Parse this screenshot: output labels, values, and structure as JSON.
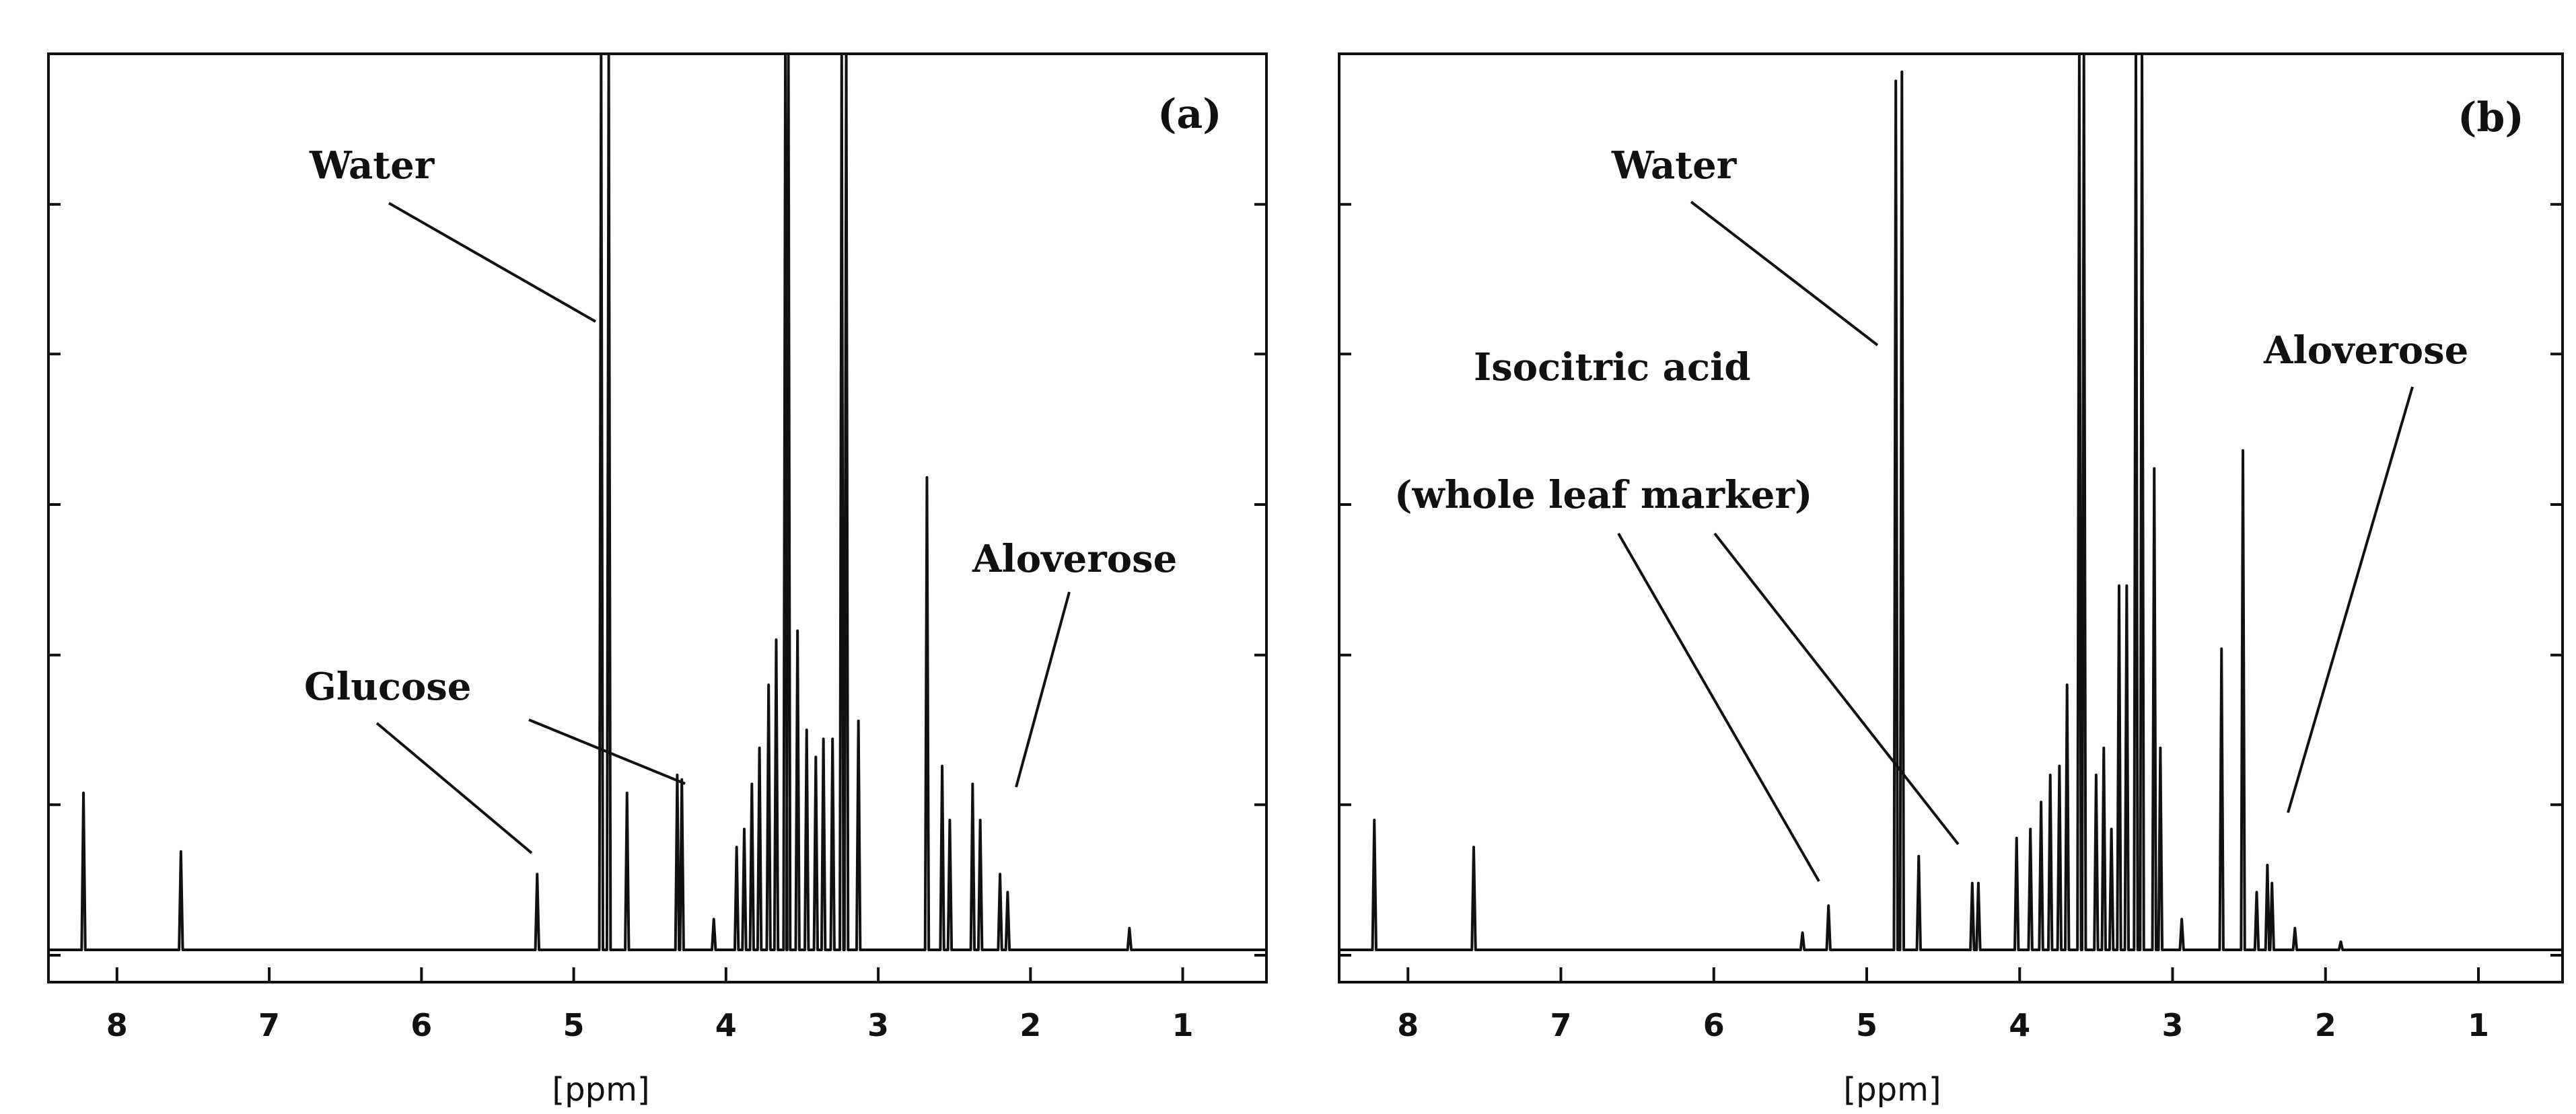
{
  "chart_data": [
    {
      "type": "line",
      "panel_label": "(a)",
      "xlabel": "[ppm]",
      "ylabel": "",
      "x_reversed": true,
      "xlim": [
        8.45,
        0.45
      ],
      "ylim": [
        0,
        100
      ],
      "x_ticks": [
        8,
        7,
        6,
        5,
        4,
        3,
        2,
        1
      ],
      "x_tick_labels": [
        "8",
        "7",
        "6",
        "5",
        "4",
        "3",
        "2",
        "1"
      ],
      "y_ticks": [
        0,
        16.7,
        33.3,
        50,
        66.7,
        83.3
      ],
      "baseline": 0.6,
      "peaks": [
        {
          "ppm": 8.22,
          "height": 18
        },
        {
          "ppm": 7.58,
          "height": 11.5
        },
        {
          "ppm": 5.24,
          "height": 9
        },
        {
          "ppm": 4.82,
          "height": 100
        },
        {
          "ppm": 4.77,
          "height": 100
        },
        {
          "ppm": 4.65,
          "height": 18
        },
        {
          "ppm": 4.32,
          "height": 20
        },
        {
          "ppm": 4.29,
          "height": 19.5
        },
        {
          "ppm": 4.08,
          "height": 4
        },
        {
          "ppm": 3.93,
          "height": 12
        },
        {
          "ppm": 3.88,
          "height": 14
        },
        {
          "ppm": 3.83,
          "height": 19
        },
        {
          "ppm": 3.78,
          "height": 23
        },
        {
          "ppm": 3.72,
          "height": 30
        },
        {
          "ppm": 3.67,
          "height": 35
        },
        {
          "ppm": 3.61,
          "height": 100
        },
        {
          "ppm": 3.59,
          "height": 100
        },
        {
          "ppm": 3.53,
          "height": 36
        },
        {
          "ppm": 3.47,
          "height": 25
        },
        {
          "ppm": 3.41,
          "height": 22
        },
        {
          "ppm": 3.36,
          "height": 24
        },
        {
          "ppm": 3.3,
          "height": 24
        },
        {
          "ppm": 3.24,
          "height": 100
        },
        {
          "ppm": 3.21,
          "height": 100
        },
        {
          "ppm": 3.13,
          "height": 26
        },
        {
          "ppm": 2.68,
          "height": 53
        },
        {
          "ppm": 2.58,
          "height": 21
        },
        {
          "ppm": 2.53,
          "height": 15
        },
        {
          "ppm": 2.38,
          "height": 19
        },
        {
          "ppm": 2.33,
          "height": 15
        },
        {
          "ppm": 2.2,
          "height": 9
        },
        {
          "ppm": 2.15,
          "height": 7
        },
        {
          "ppm": 1.35,
          "height": 3
        }
      ],
      "annotations": [
        {
          "text": "Water",
          "ppm": 4.8,
          "height": 70
        },
        {
          "text": "Glucose",
          "ppm": 5.24,
          "height": 10
        },
        {
          "text": "Glucose",
          "ppm": 4.3,
          "height": 19
        },
        {
          "text": "Aloverose",
          "ppm": 2.2,
          "height": 15
        }
      ]
    },
    {
      "type": "line",
      "panel_label": "(b)",
      "xlabel": "[ppm]",
      "ylabel": "",
      "x_reversed": true,
      "xlim": [
        8.45,
        0.45
      ],
      "ylim": [
        0,
        100
      ],
      "x_ticks": [
        8,
        7,
        6,
        5,
        4,
        3,
        2,
        1
      ],
      "x_tick_labels": [
        "8",
        "7",
        "6",
        "5",
        "4",
        "3",
        "2",
        "1"
      ],
      "y_ticks": [
        0,
        16.7,
        33.3,
        50,
        66.7,
        83.3
      ],
      "baseline": 0.6,
      "peaks": [
        {
          "ppm": 8.22,
          "height": 15
        },
        {
          "ppm": 7.57,
          "height": 12
        },
        {
          "ppm": 5.42,
          "height": 2.5
        },
        {
          "ppm": 5.25,
          "height": 5.5
        },
        {
          "ppm": 4.81,
          "height": 97
        },
        {
          "ppm": 4.77,
          "height": 98
        },
        {
          "ppm": 4.66,
          "height": 11
        },
        {
          "ppm": 4.31,
          "height": 8
        },
        {
          "ppm": 4.27,
          "height": 8
        },
        {
          "ppm": 4.02,
          "height": 13
        },
        {
          "ppm": 3.93,
          "height": 14
        },
        {
          "ppm": 3.86,
          "height": 17
        },
        {
          "ppm": 3.8,
          "height": 20
        },
        {
          "ppm": 3.74,
          "height": 21
        },
        {
          "ppm": 3.69,
          "height": 30
        },
        {
          "ppm": 3.61,
          "height": 100
        },
        {
          "ppm": 3.58,
          "height": 100
        },
        {
          "ppm": 3.5,
          "height": 20
        },
        {
          "ppm": 3.45,
          "height": 23
        },
        {
          "ppm": 3.4,
          "height": 14
        },
        {
          "ppm": 3.35,
          "height": 41
        },
        {
          "ppm": 3.3,
          "height": 41
        },
        {
          "ppm": 3.24,
          "height": 100
        },
        {
          "ppm": 3.2,
          "height": 100
        },
        {
          "ppm": 3.12,
          "height": 54
        },
        {
          "ppm": 3.08,
          "height": 23
        },
        {
          "ppm": 2.94,
          "height": 4
        },
        {
          "ppm": 2.68,
          "height": 34
        },
        {
          "ppm": 2.54,
          "height": 56
        },
        {
          "ppm": 2.45,
          "height": 7
        },
        {
          "ppm": 2.38,
          "height": 10
        },
        {
          "ppm": 2.35,
          "height": 8
        },
        {
          "ppm": 2.2,
          "height": 3
        },
        {
          "ppm": 1.9,
          "height": 1.5
        }
      ],
      "annotations": [
        {
          "text": "Water",
          "ppm": 4.8,
          "height": 70
        },
        {
          "text": "Isocitric acid",
          "ppm": 5.28,
          "height": 6
        },
        {
          "text": "(whole leaf marker)",
          "ppm": 4.3,
          "height": 9
        },
        {
          "text": "Aloverose",
          "ppm": 2.36,
          "height": 12
        }
      ]
    }
  ],
  "panels": [
    {
      "panel_label": "(a)",
      "xlabel": "[ppm]",
      "annotation_texts": [
        "Water",
        "Glucose",
        "Aloverose"
      ]
    },
    {
      "panel_label": "(b)",
      "xlabel": "[ppm]",
      "annotation_texts": [
        "Water",
        "Isocitric acid",
        "(whole leaf marker)",
        "Aloverose"
      ]
    }
  ]
}
